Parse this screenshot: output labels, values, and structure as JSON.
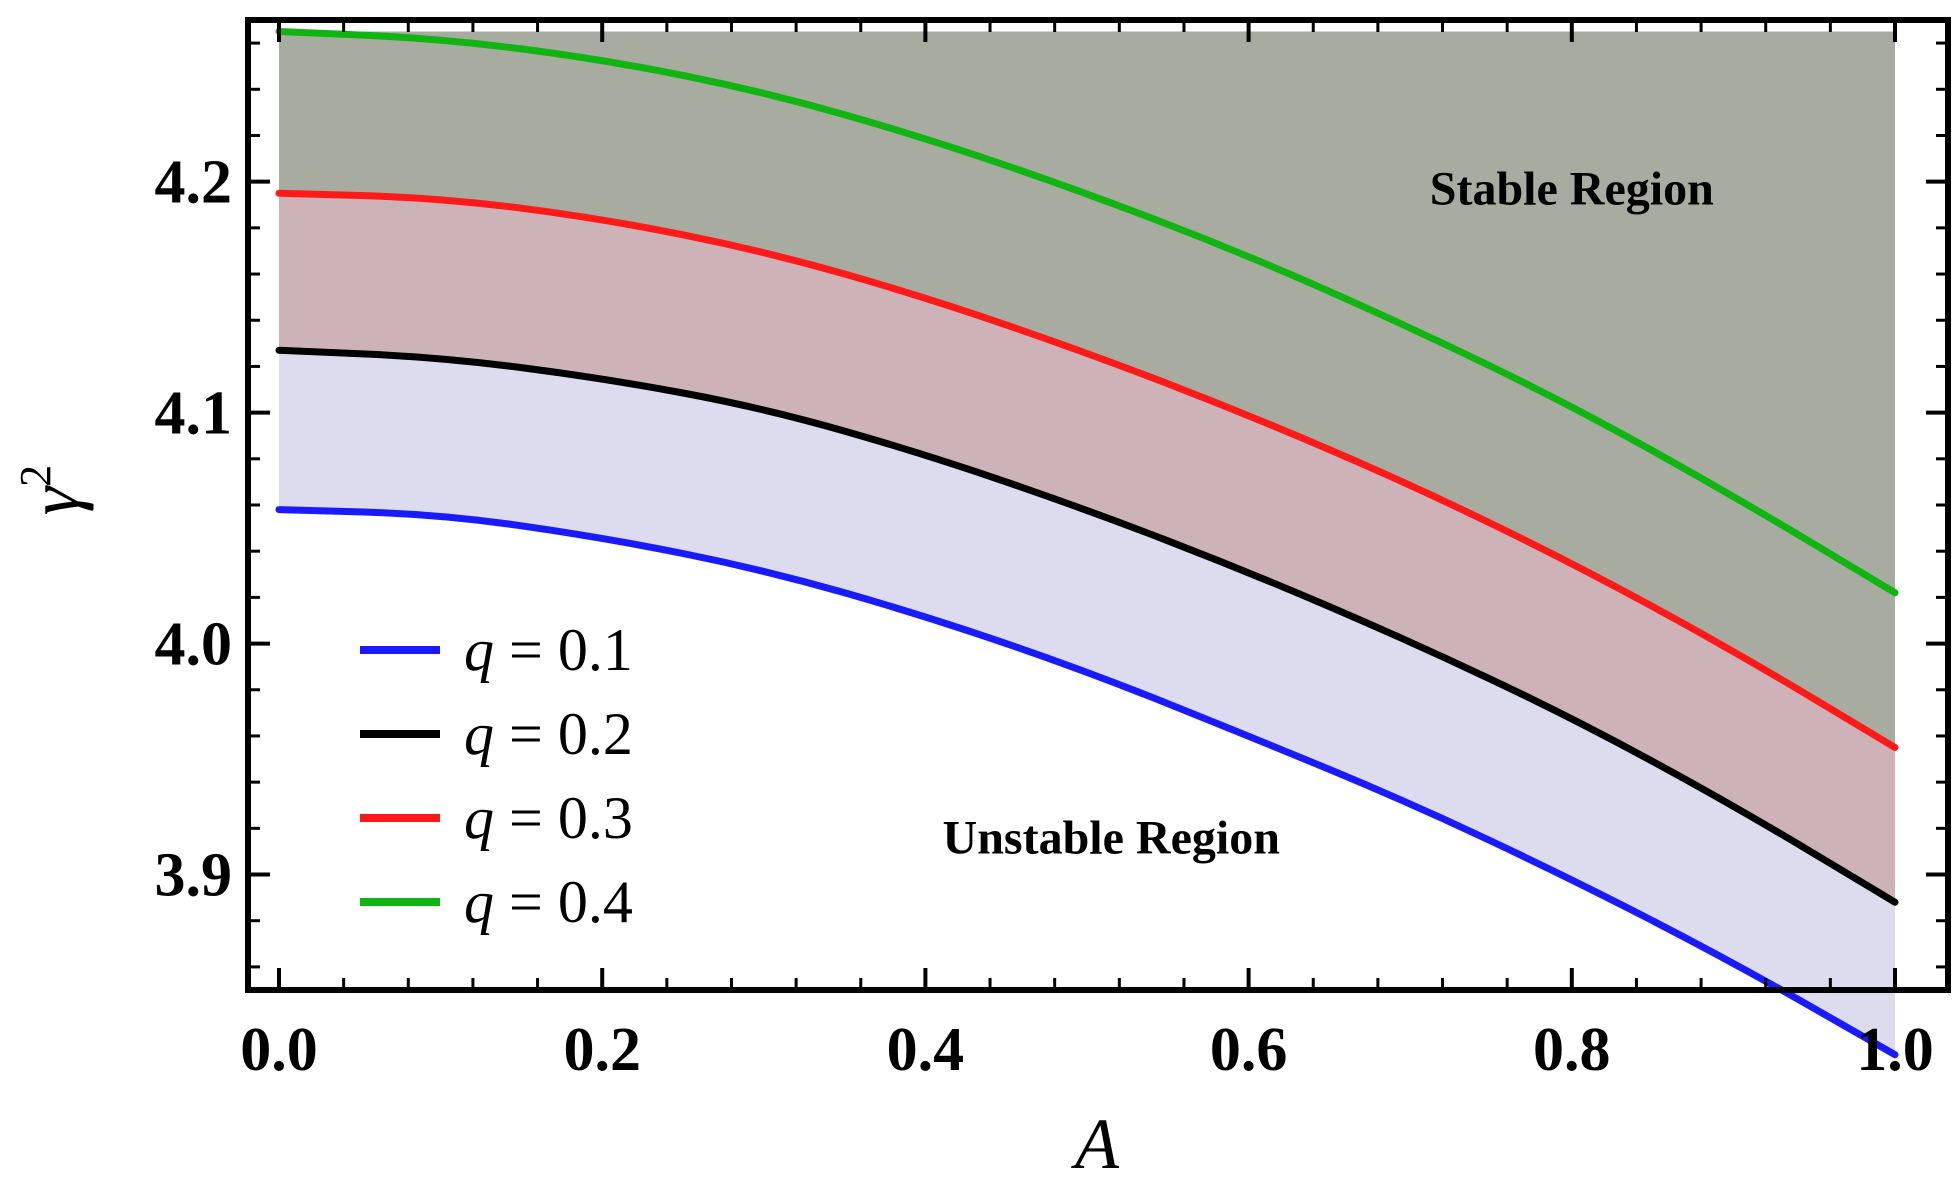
{
  "chart_data": {
    "type": "area",
    "title": "",
    "xlabel": "A",
    "ylabel": "γ",
    "ylabel_sup": "2",
    "xlim": [
      0,
      1
    ],
    "ylim": [
      3.85,
      4.27
    ],
    "x_ticks": [
      0.0,
      0.2,
      0.4,
      0.6,
      0.8,
      1.0
    ],
    "x_tick_labels": [
      "0.0",
      "0.2",
      "0.4",
      "0.6",
      "0.8",
      "1.0"
    ],
    "y_ticks": [
      3.9,
      4.0,
      4.1,
      4.2
    ],
    "y_tick_labels": [
      "3.9",
      "4.0",
      "4.1",
      "4.2"
    ],
    "grid": false,
    "legend_position": "lower-left",
    "top_fill_color": "#a7aba0",
    "series": [
      {
        "name": "q = 0.1",
        "legend_var": "q",
        "legend_eq": " = 0.1",
        "color": "#1a1aff",
        "fill_color": "#dcdcee",
        "x": [
          0,
          0.1,
          0.2,
          0.3,
          0.4,
          0.5,
          0.6,
          0.7,
          0.8,
          0.9,
          1.0
        ],
        "y": [
          4.058,
          4.056,
          4.046,
          4.032,
          4.012,
          3.988,
          3.96,
          3.931,
          3.898,
          3.862,
          3.822
        ]
      },
      {
        "name": "q = 0.2",
        "legend_var": "q",
        "legend_eq": " = 0.2",
        "color": "#000000",
        "fill_color": "#d6bcd6",
        "x": [
          0,
          0.1,
          0.2,
          0.3,
          0.4,
          0.5,
          0.6,
          0.7,
          0.8,
          0.9,
          1.0
        ],
        "y": [
          4.127,
          4.124,
          4.115,
          4.102,
          4.082,
          4.058,
          4.031,
          4.001,
          3.968,
          3.93,
          3.888
        ]
      },
      {
        "name": "q = 0.3",
        "legend_var": "q",
        "legend_eq": " = 0.3",
        "color": "#ff1a1a",
        "fill_color": "#cdb3b8",
        "x": [
          0,
          0.1,
          0.2,
          0.3,
          0.4,
          0.5,
          0.6,
          0.7,
          0.8,
          0.9,
          1.0
        ],
        "y": [
          4.195,
          4.193,
          4.184,
          4.17,
          4.15,
          4.126,
          4.099,
          4.069,
          4.035,
          3.997,
          3.955
        ]
      },
      {
        "name": "q = 0.4",
        "legend_var": "q",
        "legend_eq": " = 0.4",
        "color": "#11b511",
        "fill_color": "#a7aba0",
        "x": [
          0,
          0.1,
          0.2,
          0.3,
          0.4,
          0.5,
          0.6,
          0.7,
          0.8,
          0.9,
          1.0
        ],
        "y": [
          4.265,
          4.262,
          4.253,
          4.239,
          4.219,
          4.195,
          4.168,
          4.137,
          4.103,
          4.064,
          4.022
        ]
      }
    ],
    "annotations": [
      {
        "text": "Stable Region",
        "x": 0.8,
        "y": 4.197
      },
      {
        "text": "Unstable Region",
        "x": 0.515,
        "y": 3.916
      }
    ]
  }
}
